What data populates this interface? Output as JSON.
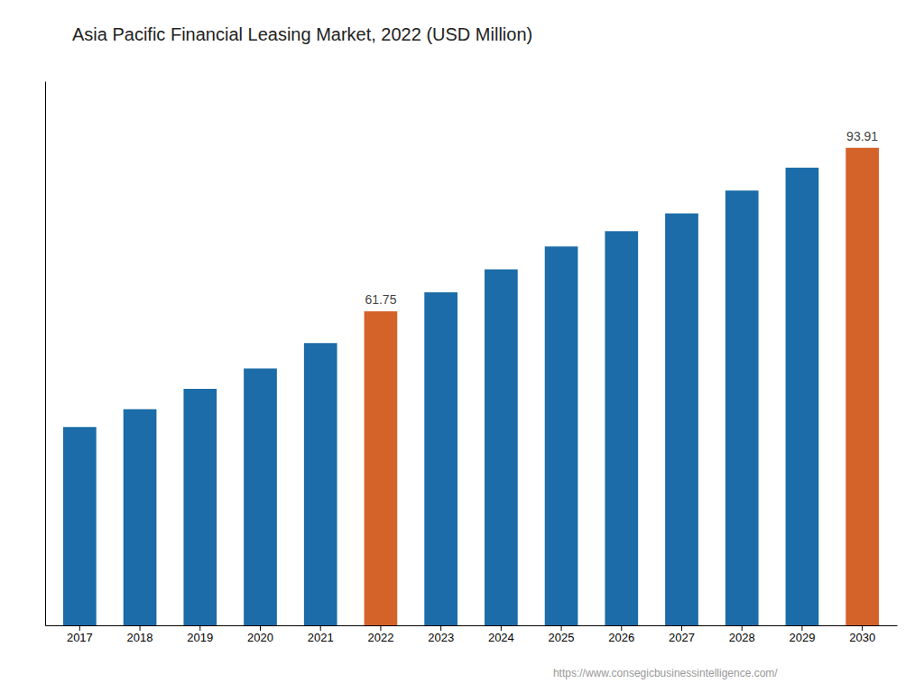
{
  "chart_data": {
    "type": "bar",
    "title": "Asia Pacific Financial Leasing Market, 2022 (USD Million)",
    "footnote": "https://www.consegicbusinessintelligence.com/",
    "categories": [
      "2017",
      "2018",
      "2019",
      "2020",
      "2021",
      "2022",
      "2023",
      "2024",
      "2025",
      "2026",
      "2027",
      "2028",
      "2029",
      "2030"
    ],
    "values": [
      39.0,
      42.5,
      46.5,
      50.5,
      55.5,
      61.75,
      65.5,
      70.0,
      74.5,
      77.5,
      81.0,
      85.5,
      90.0,
      93.91
    ],
    "colors": [
      "#1b6ca8",
      "#1b6ca8",
      "#1b6ca8",
      "#1b6ca8",
      "#1b6ca8",
      "#d4632a",
      "#1b6ca8",
      "#1b6ca8",
      "#1b6ca8",
      "#1b6ca8",
      "#1b6ca8",
      "#1b6ca8",
      "#1b6ca8",
      "#d4632a"
    ],
    "data_labels": true,
    "value_labels": [
      null,
      null,
      null,
      null,
      null,
      "61.75",
      null,
      null,
      null,
      null,
      null,
      null,
      null,
      "93.91"
    ],
    "ylim": [
      0,
      107
    ],
    "tick_labels": "x",
    "grid": false
  }
}
